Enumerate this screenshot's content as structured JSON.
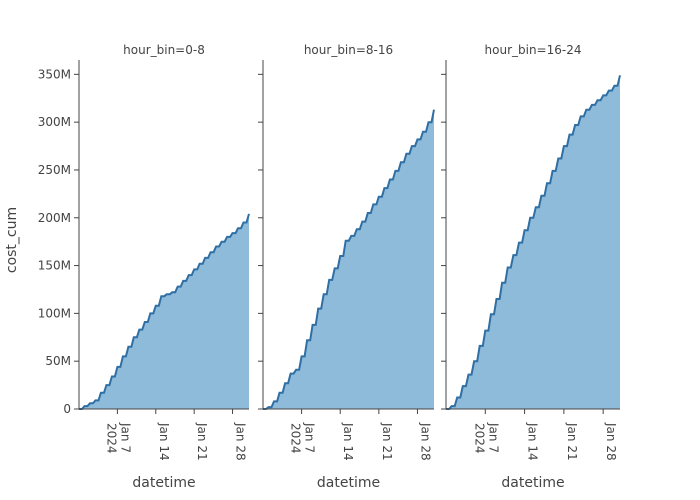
{
  "chart_data": {
    "type": "area",
    "ylabel": "cost_cum",
    "xlabel": "datetime",
    "ylim": [
      0,
      365000000
    ],
    "x_range": [
      "2023-12-31",
      "2024-01-31"
    ],
    "y_ticks": [
      {
        "value": 0,
        "label": "0"
      },
      {
        "value": 50000000,
        "label": "50M"
      },
      {
        "value": 100000000,
        "label": "100M"
      },
      {
        "value": 150000000,
        "label": "150M"
      },
      {
        "value": 200000000,
        "label": "200M"
      },
      {
        "value": 250000000,
        "label": "250M"
      },
      {
        "value": 300000000,
        "label": "300M"
      },
      {
        "value": 350000000,
        "label": "350M"
      }
    ],
    "x_ticks": [
      {
        "value": "2024-01-07",
        "label": "Jan 7",
        "sublabel": "2024"
      },
      {
        "value": "2024-01-14",
        "label": "Jan 14"
      },
      {
        "value": "2024-01-21",
        "label": "Jan 21"
      },
      {
        "value": "2024-01-28",
        "label": "Jan 28"
      }
    ],
    "grid": false,
    "fill_color": "#8fbbdb",
    "line_color": "#2f6fa3",
    "facets": [
      {
        "title": "hour_bin=0-8",
        "dates": [
          "2024-01-01",
          "2024-01-02",
          "2024-01-03",
          "2024-01-04",
          "2024-01-05",
          "2024-01-06",
          "2024-01-07",
          "2024-01-08",
          "2024-01-09",
          "2024-01-10",
          "2024-01-11",
          "2024-01-12",
          "2024-01-13",
          "2024-01-14",
          "2024-01-15",
          "2024-01-16",
          "2024-01-17",
          "2024-01-18",
          "2024-01-19",
          "2024-01-20",
          "2024-01-21",
          "2024-01-22",
          "2024-01-23",
          "2024-01-24",
          "2024-01-25",
          "2024-01-26",
          "2024-01-27",
          "2024-01-28",
          "2024-01-29",
          "2024-01-30",
          "2024-01-31"
        ],
        "values": [
          3000000,
          6000000,
          9000000,
          17000000,
          25000000,
          34000000,
          44000000,
          55000000,
          65000000,
          75000000,
          83000000,
          91000000,
          100000000,
          108000000,
          118000000,
          120000000,
          122000000,
          128000000,
          134000000,
          140000000,
          146000000,
          152000000,
          158000000,
          164000000,
          170000000,
          175000000,
          180000000,
          184000000,
          189000000,
          195000000,
          204000000
        ]
      },
      {
        "title": "hour_bin=8-16",
        "dates": [
          "2024-01-01",
          "2024-01-02",
          "2024-01-03",
          "2024-01-04",
          "2024-01-05",
          "2024-01-06",
          "2024-01-07",
          "2024-01-08",
          "2024-01-09",
          "2024-01-10",
          "2024-01-11",
          "2024-01-12",
          "2024-01-13",
          "2024-01-14",
          "2024-01-15",
          "2024-01-16",
          "2024-01-17",
          "2024-01-18",
          "2024-01-19",
          "2024-01-20",
          "2024-01-21",
          "2024-01-22",
          "2024-01-23",
          "2024-01-24",
          "2024-01-25",
          "2024-01-26",
          "2024-01-27",
          "2024-01-28",
          "2024-01-29",
          "2024-01-30",
          "2024-01-31"
        ],
        "values": [
          2000000,
          8000000,
          17000000,
          27000000,
          37000000,
          41000000,
          55000000,
          72000000,
          88000000,
          105000000,
          120000000,
          135000000,
          147000000,
          160000000,
          176000000,
          181000000,
          188000000,
          196000000,
          205000000,
          214000000,
          222000000,
          231000000,
          240000000,
          249000000,
          258000000,
          267000000,
          275000000,
          282000000,
          290000000,
          300000000,
          313000000
        ]
      },
      {
        "title": "hour_bin=16-24",
        "dates": [
          "2024-01-01",
          "2024-01-02",
          "2024-01-03",
          "2024-01-04",
          "2024-01-05",
          "2024-01-06",
          "2024-01-07",
          "2024-01-08",
          "2024-01-09",
          "2024-01-10",
          "2024-01-11",
          "2024-01-12",
          "2024-01-13",
          "2024-01-14",
          "2024-01-15",
          "2024-01-16",
          "2024-01-17",
          "2024-01-18",
          "2024-01-19",
          "2024-01-20",
          "2024-01-21",
          "2024-01-22",
          "2024-01-23",
          "2024-01-24",
          "2024-01-25",
          "2024-01-26",
          "2024-01-27",
          "2024-01-28",
          "2024-01-29",
          "2024-01-30",
          "2024-01-31"
        ],
        "values": [
          3000000,
          12000000,
          24000000,
          36000000,
          50000000,
          66000000,
          82000000,
          99000000,
          115000000,
          132000000,
          148000000,
          161000000,
          174000000,
          187000000,
          200000000,
          211000000,
          223000000,
          236000000,
          249000000,
          262000000,
          275000000,
          287000000,
          297000000,
          306000000,
          313000000,
          318000000,
          323000000,
          328000000,
          333000000,
          338000000,
          349000000
        ]
      }
    ]
  }
}
